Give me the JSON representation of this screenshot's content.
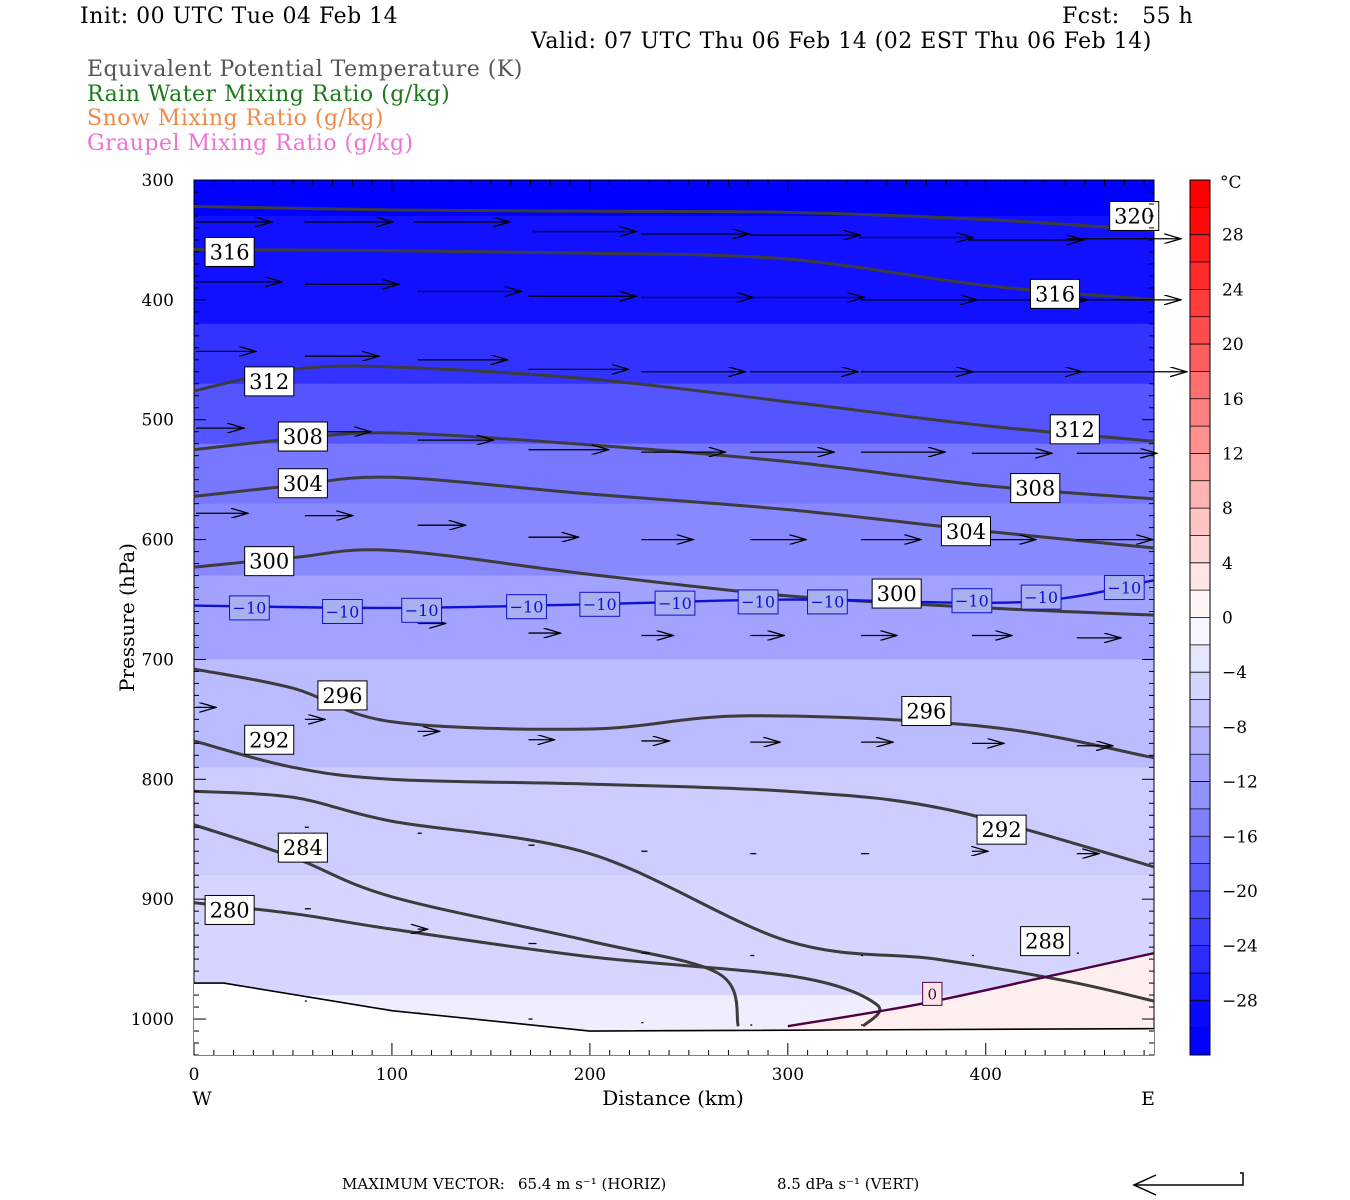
{
  "header": {
    "init": "Init: 00 UTC Tue 04 Feb 14",
    "fcst": "Fcst:   55 h",
    "valid": "Valid: 07 UTC Thu 06 Feb 14 (02 EST Thu 06 Feb 14)"
  },
  "fields": [
    {
      "label": "Equivalent Potential Temperature (K)",
      "color": "#555555"
    },
    {
      "label": "Rain Water Mixing Ratio (g/kg)",
      "color": "#1a7a1a"
    },
    {
      "label": "Snow Mixing Ratio (g/kg)",
      "color": "#f08a4a"
    },
    {
      "label": "Graupel Mixing Ratio (g/kg)",
      "color": "#ee70d8"
    }
  ],
  "chart_data": {
    "type": "cross-section",
    "xlabel": "Distance (km)",
    "ylabel": "Pressure (hPa)",
    "xlim": [
      0,
      485
    ],
    "ylim": [
      1030,
      300
    ],
    "x_ticks": [
      0,
      100,
      200,
      300,
      400
    ],
    "y_ticks": [
      300,
      400,
      500,
      600,
      700,
      800,
      900,
      1000
    ],
    "x_end_labels": {
      "left": "W",
      "right": "E"
    },
    "colorbar": {
      "unit": "°C",
      "tick_labels": [
        "28",
        "24",
        "20",
        "16",
        "12",
        "8",
        "4",
        "0",
        "−4",
        "−8",
        "−12",
        "−16",
        "−20",
        "−24",
        "−28"
      ],
      "range": [
        -32,
        32
      ]
    },
    "temperature_fill_bands": [
      {
        "p_top": 300,
        "p_bottom": 330,
        "temp": -30
      },
      {
        "p_top": 330,
        "p_bottom": 420,
        "temp": -28
      },
      {
        "p_top": 420,
        "p_bottom": 470,
        "temp": -24
      },
      {
        "p_top": 470,
        "p_bottom": 520,
        "temp": -20
      },
      {
        "p_top": 520,
        "p_bottom": 570,
        "temp": -16
      },
      {
        "p_top": 570,
        "p_bottom": 630,
        "temp": -14
      },
      {
        "p_top": 630,
        "p_bottom": 700,
        "temp": -11
      },
      {
        "p_top": 700,
        "p_bottom": 790,
        "temp": -8
      },
      {
        "p_top": 790,
        "p_bottom": 880,
        "temp": -6
      },
      {
        "p_top": 880,
        "p_bottom": 980,
        "temp": -5
      },
      {
        "p_top": 980,
        "p_bottom": 1030,
        "temp": -2
      }
    ],
    "theta_e_contours": [
      {
        "value": "320",
        "points": [
          [
            0,
            322
          ],
          [
            100,
            325
          ],
          [
            200,
            326
          ],
          [
            300,
            327
          ],
          [
            400,
            333
          ],
          [
            485,
            342
          ]
        ],
        "labels": [
          [
            475,
            330
          ]
        ]
      },
      {
        "value": "316",
        "points": [
          [
            0,
            358
          ],
          [
            100,
            359
          ],
          [
            200,
            361
          ],
          [
            300,
            366
          ],
          [
            400,
            388
          ],
          [
            485,
            400
          ]
        ],
        "labels": [
          [
            18,
            360
          ],
          [
            435,
            395
          ]
        ]
      },
      {
        "value": "312",
        "points": [
          [
            0,
            476
          ],
          [
            50,
            458
          ],
          [
            100,
            456
          ],
          [
            200,
            466
          ],
          [
            300,
            485
          ],
          [
            400,
            505
          ],
          [
            485,
            518
          ]
        ],
        "labels": [
          [
            38,
            468
          ],
          [
            445,
            508
          ]
        ]
      },
      {
        "value": "308",
        "points": [
          [
            0,
            525
          ],
          [
            50,
            516
          ],
          [
            100,
            511
          ],
          [
            200,
            521
          ],
          [
            300,
            535
          ],
          [
            400,
            555
          ],
          [
            485,
            566
          ]
        ],
        "labels": [
          [
            55,
            514
          ],
          [
            425,
            557
          ]
        ]
      },
      {
        "value": "304",
        "points": [
          [
            0,
            564
          ],
          [
            50,
            555
          ],
          [
            100,
            548
          ],
          [
            200,
            562
          ],
          [
            300,
            575
          ],
          [
            400,
            593
          ],
          [
            485,
            607
          ]
        ],
        "labels": [
          [
            55,
            553
          ],
          [
            390,
            593
          ]
        ]
      },
      {
        "value": "300",
        "points": [
          [
            0,
            623
          ],
          [
            50,
            615
          ],
          [
            100,
            609
          ],
          [
            200,
            629
          ],
          [
            300,
            647
          ],
          [
            400,
            657
          ],
          [
            485,
            663
          ]
        ],
        "labels": [
          [
            38,
            618
          ],
          [
            355,
            645
          ]
        ]
      },
      {
        "value": "296",
        "points": [
          [
            0,
            708
          ],
          [
            50,
            724
          ],
          [
            100,
            752
          ],
          [
            200,
            758
          ],
          [
            280,
            747
          ],
          [
            400,
            756
          ],
          [
            485,
            782
          ]
        ],
        "labels": [
          [
            75,
            730
          ],
          [
            370,
            743
          ]
        ]
      },
      {
        "value": "292",
        "points": [
          [
            0,
            768
          ],
          [
            50,
            790
          ],
          [
            100,
            800
          ],
          [
            200,
            804
          ],
          [
            300,
            810
          ],
          [
            380,
            825
          ],
          [
            485,
            873
          ]
        ],
        "labels": [
          [
            38,
            767
          ],
          [
            408,
            842
          ]
        ]
      },
      {
        "value": "288",
        "points": [
          [
            0,
            810
          ],
          [
            50,
            815
          ],
          [
            100,
            835
          ],
          [
            200,
            862
          ],
          [
            300,
            935
          ],
          [
            375,
            950
          ],
          [
            440,
            968
          ],
          [
            485,
            985
          ]
        ],
        "labels": [
          [
            430,
            935
          ]
        ]
      },
      {
        "value": "284",
        "points": [
          [
            0,
            838
          ],
          [
            50,
            865
          ],
          [
            100,
            898
          ],
          [
            200,
            935
          ],
          [
            265,
            962
          ],
          [
            275,
            1006
          ]
        ],
        "labels": [
          [
            55,
            857
          ]
        ]
      },
      {
        "value": "280",
        "points": [
          [
            0,
            903
          ],
          [
            50,
            912
          ],
          [
            100,
            925
          ],
          [
            200,
            948
          ],
          [
            305,
            965
          ],
          [
            345,
            988
          ],
          [
            338,
            1006
          ]
        ],
        "labels": [
          [
            18,
            909
          ]
        ]
      }
    ],
    "isotherms": [
      {
        "value": "−10",
        "color": "#1010d0",
        "points": [
          [
            0,
            655
          ],
          [
            100,
            657
          ],
          [
            200,
            654
          ],
          [
            300,
            650
          ],
          [
            420,
            652
          ],
          [
            485,
            634
          ]
        ],
        "labels": [
          [
            28,
            657
          ],
          [
            75,
            660
          ],
          [
            115,
            659
          ],
          [
            168,
            656
          ],
          [
            205,
            654
          ],
          [
            243,
            653
          ],
          [
            285,
            652
          ],
          [
            320,
            652
          ],
          [
            393,
            651
          ],
          [
            428,
            648
          ],
          [
            470,
            640
          ]
        ]
      },
      {
        "value": "0",
        "color": "#500040",
        "points": [
          [
            300,
            1006
          ],
          [
            365,
            988
          ],
          [
            430,
            965
          ],
          [
            485,
            945
          ]
        ],
        "labels": [
          [
            373,
            979
          ]
        ]
      }
    ],
    "surface": [
      [
        0,
        970
      ],
      [
        15,
        970
      ],
      [
        100,
        993
      ],
      [
        200,
        1010
      ],
      [
        485,
        1008
      ]
    ],
    "wind_vectors": [
      {
        "x": 0,
        "p": 335,
        "u": 38,
        "w": 0
      },
      {
        "x": 55,
        "p": 335,
        "u": 44,
        "w": 0
      },
      {
        "x": 110,
        "p": 335,
        "u": 48,
        "w": 0
      },
      {
        "x": 170,
        "p": 343,
        "u": 52,
        "w": 0
      },
      {
        "x": 225,
        "p": 345,
        "u": 54,
        "w": 0
      },
      {
        "x": 280,
        "p": 346,
        "u": 55,
        "w": 0
      },
      {
        "x": 335,
        "p": 348,
        "u": 57,
        "w": 0
      },
      {
        "x": 390,
        "p": 350,
        "u": 58,
        "w": 0
      },
      {
        "x": 440,
        "p": 349,
        "u": 57,
        "w": 0
      },
      {
        "x": 0,
        "p": 385,
        "u": 43,
        "w": 0
      },
      {
        "x": 55,
        "p": 387,
        "u": 47,
        "w": 0
      },
      {
        "x": 112,
        "p": 393,
        "u": 52,
        "w": 0
      },
      {
        "x": 168,
        "p": 397,
        "u": 54,
        "w": 0
      },
      {
        "x": 225,
        "p": 398,
        "u": 56,
        "w": 0
      },
      {
        "x": 280,
        "p": 398,
        "u": 57,
        "w": 0
      },
      {
        "x": 336,
        "p": 400,
        "u": 58,
        "w": 0
      },
      {
        "x": 392,
        "p": 400,
        "u": 58,
        "w": 0
      },
      {
        "x": 440,
        "p": 400,
        "u": 57,
        "w": 0
      },
      {
        "x": 0,
        "p": 443,
        "u": 30,
        "w": 0
      },
      {
        "x": 55,
        "p": 447,
        "u": 37,
        "w": 0
      },
      {
        "x": 112,
        "p": 450,
        "u": 45,
        "w": 0
      },
      {
        "x": 168,
        "p": 458,
        "u": 50,
        "w": 0
      },
      {
        "x": 225,
        "p": 460,
        "u": 52,
        "w": 0
      },
      {
        "x": 280,
        "p": 460,
        "u": 54,
        "w": 0
      },
      {
        "x": 336,
        "p": 460,
        "u": 56,
        "w": 0
      },
      {
        "x": 392,
        "p": 460,
        "u": 55,
        "w": 0
      },
      {
        "x": 445,
        "p": 460,
        "u": 55,
        "w": 0
      },
      {
        "x": 0,
        "p": 507,
        "u": 24,
        "w": 0
      },
      {
        "x": 55,
        "p": 510,
        "u": 33,
        "w": 0
      },
      {
        "x": 112,
        "p": 517,
        "u": 38,
        "w": 0
      },
      {
        "x": 168,
        "p": 525,
        "u": 40,
        "w": 0
      },
      {
        "x": 225,
        "p": 527,
        "u": 42,
        "w": 0
      },
      {
        "x": 280,
        "p": 527,
        "u": 42,
        "w": 0
      },
      {
        "x": 336,
        "p": 527,
        "u": 42,
        "w": 0
      },
      {
        "x": 392,
        "p": 528,
        "u": 40,
        "w": 0
      },
      {
        "x": 445,
        "p": 528,
        "u": 40,
        "w": 0
      },
      {
        "x": 0,
        "p": 578,
        "u": 26,
        "w": 0
      },
      {
        "x": 55,
        "p": 580,
        "u": 24,
        "w": 0
      },
      {
        "x": 112,
        "p": 588,
        "u": 24,
        "w": 0
      },
      {
        "x": 168,
        "p": 598,
        "u": 25,
        "w": 0
      },
      {
        "x": 225,
        "p": 600,
        "u": 26,
        "w": 0
      },
      {
        "x": 280,
        "p": 600,
        "u": 28,
        "w": 0
      },
      {
        "x": 336,
        "p": 600,
        "u": 30,
        "w": 0
      },
      {
        "x": 392,
        "p": 600,
        "u": 32,
        "w": 0
      },
      {
        "x": 445,
        "p": 600,
        "u": 38,
        "w": 0
      },
      {
        "x": 112,
        "p": 670,
        "u": 14,
        "w": 0
      },
      {
        "x": 168,
        "p": 678,
        "u": 16,
        "w": 0
      },
      {
        "x": 225,
        "p": 680,
        "u": 16,
        "w": 0
      },
      {
        "x": 280,
        "p": 680,
        "u": 17,
        "w": 0
      },
      {
        "x": 336,
        "p": 680,
        "u": 18,
        "w": 0
      },
      {
        "x": 392,
        "p": 680,
        "u": 20,
        "w": 0
      },
      {
        "x": 445,
        "p": 682,
        "u": 22,
        "w": 0
      },
      {
        "x": 0,
        "p": 740,
        "u": 10,
        "w": 0
      },
      {
        "x": 55,
        "p": 750,
        "u": 10,
        "w": 0
      },
      {
        "x": 112,
        "p": 760,
        "u": 11,
        "w": 0
      },
      {
        "x": 168,
        "p": 767,
        "u": 13,
        "w": 0
      },
      {
        "x": 225,
        "p": 768,
        "u": 14,
        "w": 0
      },
      {
        "x": 280,
        "p": 769,
        "u": 15,
        "w": 0
      },
      {
        "x": 336,
        "p": 769,
        "u": 16,
        "w": 0
      },
      {
        "x": 392,
        "p": 770,
        "u": 16,
        "w": 0
      },
      {
        "x": 445,
        "p": 772,
        "u": 18,
        "w": 0
      },
      {
        "x": 55,
        "p": 840,
        "u": 2,
        "w": 0
      },
      {
        "x": 112,
        "p": 845,
        "u": 2,
        "w": 0
      },
      {
        "x": 168,
        "p": 855,
        "u": 3,
        "w": 0
      },
      {
        "x": 225,
        "p": 860,
        "u": 3,
        "w": 0
      },
      {
        "x": 280,
        "p": 862,
        "u": 3,
        "w": 0
      },
      {
        "x": 336,
        "p": 862,
        "u": 4,
        "w": 0
      },
      {
        "x": 392,
        "p": 860,
        "u": 8,
        "w": 0
      },
      {
        "x": 445,
        "p": 862,
        "u": 11,
        "w": 0
      },
      {
        "x": 55,
        "p": 908,
        "u": 3,
        "w": 0
      },
      {
        "x": 112,
        "p": 925,
        "u": 5,
        "w": 0
      },
      {
        "x": 168,
        "p": 937,
        "u": 4,
        "w": 0
      },
      {
        "x": 225,
        "p": 945,
        "u": 4,
        "w": 0
      },
      {
        "x": 280,
        "p": 947,
        "u": 2,
        "w": 0
      },
      {
        "x": 336,
        "p": 947,
        "u": 1,
        "w": 0
      },
      {
        "x": 392,
        "p": 947,
        "u": 1,
        "w": 0
      },
      {
        "x": 445,
        "p": 945,
        "u": 1,
        "w": 0
      },
      {
        "x": 55,
        "p": 985,
        "u": 1,
        "w": 0
      },
      {
        "x": 112,
        "p": 995,
        "u": 1,
        "w": 0
      },
      {
        "x": 168,
        "p": 1000,
        "u": 2,
        "w": 0
      },
      {
        "x": 225,
        "p": 1003,
        "u": 1,
        "w": 0
      },
      {
        "x": 280,
        "p": 1005,
        "u": 1,
        "w": 0
      },
      {
        "x": 336,
        "p": 1005,
        "u": 1,
        "w": 0
      }
    ]
  },
  "footer": {
    "max_vector_label": "MAXIMUM VECTOR:",
    "horiz": "65.4 m s⁻¹ (HORIZ)",
    "vert": "8.5 dPa s⁻¹ (VERT)"
  }
}
